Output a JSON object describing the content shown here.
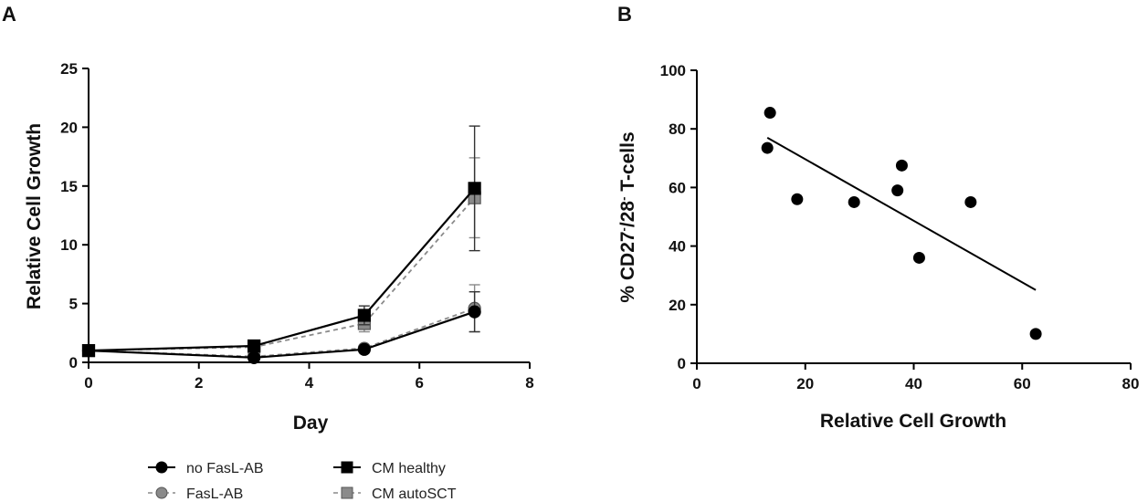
{
  "chart_data": [
    {
      "panel": "A",
      "type": "line",
      "xlabel": "Day",
      "ylabel": "Relative Cell Growth",
      "xlim": [
        0,
        8
      ],
      "ylim": [
        0,
        25
      ],
      "xticks": [
        0,
        2,
        4,
        6,
        8
      ],
      "yticks": [
        0,
        5,
        10,
        15,
        20,
        25
      ],
      "x": [
        0,
        3,
        5,
        7
      ],
      "legend_position": "bottom",
      "series": [
        {
          "name": "no FasL-AB",
          "marker": "circle",
          "color": "#000000",
          "dashed": false,
          "values": [
            1.0,
            0.4,
            1.1,
            4.3
          ],
          "errors": [
            0.0,
            0.1,
            0.2,
            1.7
          ]
        },
        {
          "name": "FasL-AB",
          "marker": "circle",
          "color": "#8a8a8a",
          "dashed": true,
          "values": [
            1.0,
            0.5,
            1.2,
            4.6
          ],
          "errors": [
            0.0,
            0.1,
            0.2,
            2.0
          ]
        },
        {
          "name": "CM healthy",
          "marker": "square",
          "color": "#000000",
          "dashed": false,
          "values": [
            1.0,
            1.4,
            4.0,
            14.8
          ],
          "errors": [
            0.0,
            0.2,
            0.8,
            5.3
          ]
        },
        {
          "name": "CM autoSCT",
          "marker": "square",
          "color": "#8a8a8a",
          "dashed": true,
          "values": [
            1.0,
            1.3,
            3.3,
            14.0
          ],
          "errors": [
            0.0,
            0.2,
            0.7,
            3.4
          ]
        }
      ]
    },
    {
      "panel": "B",
      "type": "scatter",
      "xlabel": "Relative Cell Growth",
      "ylabel_parts": [
        "% CD27",
        "-",
        "/28",
        "-",
        " T-cells"
      ],
      "xlim": [
        0,
        80
      ],
      "ylim": [
        0,
        100
      ],
      "xticks": [
        0,
        20,
        40,
        60,
        80
      ],
      "yticks": [
        0,
        20,
        40,
        60,
        80,
        100
      ],
      "points": [
        {
          "x": 13.5,
          "y": 85.5
        },
        {
          "x": 13.0,
          "y": 73.5
        },
        {
          "x": 18.5,
          "y": 56.0
        },
        {
          "x": 29.0,
          "y": 55.0
        },
        {
          "x": 37.0,
          "y": 59.0
        },
        {
          "x": 37.8,
          "y": 67.5
        },
        {
          "x": 41.0,
          "y": 36.0
        },
        {
          "x": 50.5,
          "y": 55.0
        },
        {
          "x": 62.5,
          "y": 10.0
        }
      ],
      "regression_line": {
        "x": [
          13.0,
          62.5
        ],
        "y": [
          77.0,
          25.0
        ]
      }
    }
  ]
}
